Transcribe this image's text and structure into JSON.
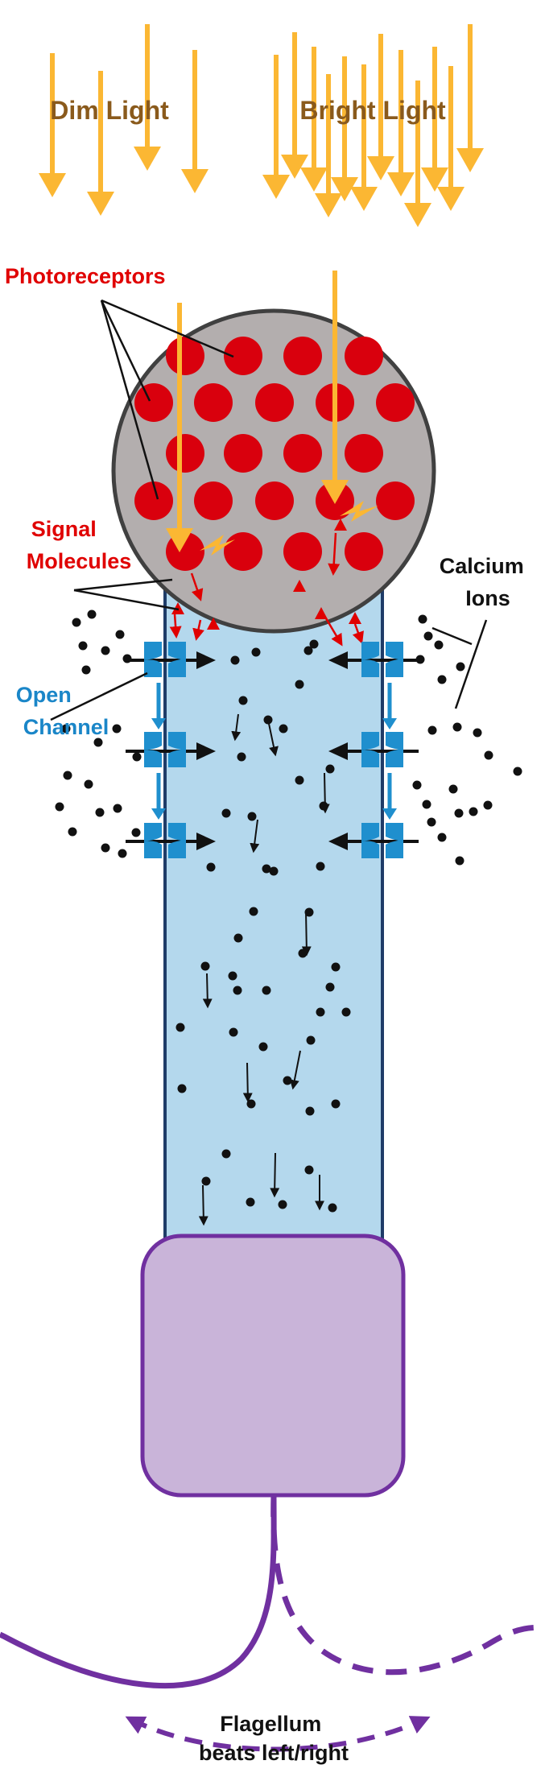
{
  "labels": {
    "dim_light": "Dim Light",
    "bright_light": "Bright Light",
    "photoreceptors": "Photoreceptors",
    "signal_molecules": [
      "Signal",
      "Molecules"
    ],
    "calcium_ions": [
      "Calcium",
      "Ions"
    ],
    "open_channel": [
      "Open",
      "Channel"
    ],
    "flagellum": [
      "Flagellum",
      "beats left/right"
    ]
  },
  "colors": {
    "light_arrow": "#fbb733",
    "light_label": "#8a5a1c",
    "photoreceptor": "#d9000d",
    "signal_label": "#e00000",
    "eyespot_fill": "#b3aeae",
    "cilium_fill": "#b4d8ed",
    "cilium_stroke": "#1f3c68",
    "channel": "#1f8fce",
    "channel_label": "#1a86c8",
    "ion": "#111111",
    "body_fill": "#c9b4d9",
    "flagellum": "#7030a0"
  },
  "icons": {
    "photoreceptor": "red-dot",
    "signal": "red-triangle",
    "activation": "lightning-bolt-icon",
    "channel": "ion-channel-icon",
    "ion": "black-dot"
  }
}
